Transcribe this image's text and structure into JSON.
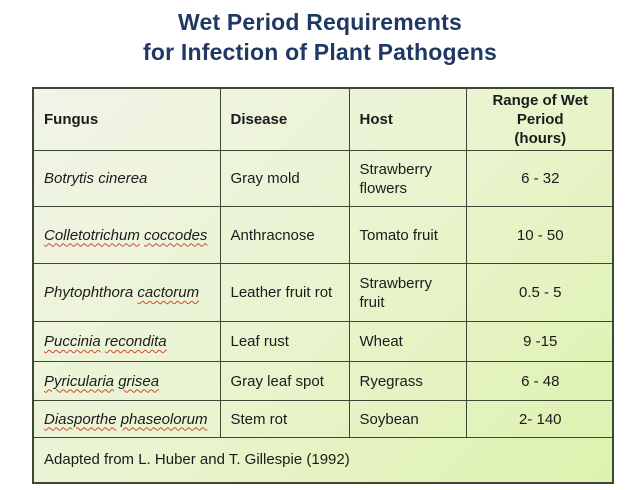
{
  "title": {
    "line1": "Wet Period Requirements",
    "line2": "for Infection of Plant Pathogens"
  },
  "table": {
    "headers": {
      "fungus": "Fungus",
      "disease": "Disease",
      "host": "Host",
      "range": "Range of Wet Period\n(hours)"
    },
    "rows": [
      {
        "genus": "Botrytis",
        "species": "cinerea",
        "genus_squiggle": false,
        "species_squiggle": false,
        "disease": "Gray mold",
        "host": "Strawberry flowers",
        "range": "6 - 32"
      },
      {
        "genus": "Colletotrichum",
        "species": "coccodes",
        "genus_squiggle": true,
        "species_squiggle": true,
        "disease": "Anthracnose",
        "host": "Tomato fruit",
        "range": "10 - 50"
      },
      {
        "genus": "Phytophthora",
        "species": "cactorum",
        "genus_squiggle": false,
        "species_squiggle": true,
        "disease": "Leather fruit rot",
        "host": "Strawberry fruit",
        "range": "0.5 - 5"
      },
      {
        "genus": "Puccinia",
        "species": "recondita",
        "genus_squiggle": true,
        "species_squiggle": true,
        "disease": "Leaf rust",
        "host": "Wheat",
        "range": "9 -15"
      },
      {
        "genus": "Pyricularia",
        "species": "grisea",
        "genus_squiggle": true,
        "species_squiggle": true,
        "disease": "Gray leaf spot",
        "host": "Ryegrass",
        "range": "6 - 48"
      },
      {
        "genus": "Diasporthe",
        "species": "phaseolorum",
        "genus_squiggle": true,
        "species_squiggle": true,
        "disease": "Stem rot",
        "host": "Soybean",
        "range": "2- 140"
      }
    ],
    "footer": "Adapted from L. Huber and T. Gillespie (1992)"
  },
  "colors": {
    "title_text": "#1f3864",
    "table_border": "#3e4636",
    "table_bg_light": "#f1f4e8",
    "table_bg_green": "#def2ae",
    "body_text": "#1b1b1b",
    "spellcheck_squiggle": "#cf4a33",
    "page_background": "#ffffff"
  }
}
